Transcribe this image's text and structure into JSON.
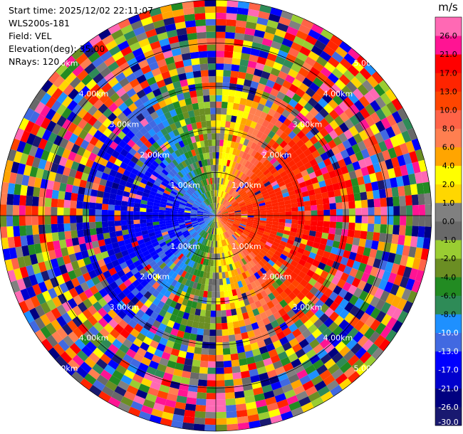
{
  "meta": {
    "start_time": "Start time: 2025/12/02 22:11:07",
    "instrument": "WLS200s-181",
    "field": "Field: VEL",
    "elevation": "Elevation(deg): 35.00",
    "nrays": "NRays: 120"
  },
  "chart_data": {
    "type": "ppi",
    "field": "VEL",
    "units": "m/s",
    "range_max_km": 5.0,
    "range_rings_km": [
      1.0,
      2.0,
      3.0,
      4.0,
      5.0
    ],
    "ring_labels": [
      "1.00km",
      "2.00km",
      "3.00km",
      "4.00km",
      "5.00km"
    ],
    "n_rays": 120,
    "colorbar": {
      "label": "m/s",
      "boundaries": [
        -30,
        -26,
        -21,
        -17,
        -13,
        -10,
        -8,
        -6,
        -4,
        -2,
        -1,
        0,
        1,
        2,
        4,
        6,
        8,
        10,
        13,
        17,
        21,
        26,
        30
      ],
      "tick_labels": [
        "-30.0",
        "-26.0",
        "-21.0",
        "-17.0",
        "-13.0",
        "-10.0",
        "-8.0",
        "-6.0",
        "-4.0",
        "-2.0",
        "-1.0",
        "0.0",
        "1.0",
        "2.0",
        "4.0",
        "6.0",
        "8.0",
        "10.0",
        "13.0",
        "17.0",
        "21.0",
        "26.0"
      ],
      "colors": [
        "#191970",
        "#000080",
        "#0000cd",
        "#0000ff",
        "#4169e1",
        "#1e90ff",
        "#2e8b57",
        "#228b22",
        "#6b8e23",
        "#9acd32",
        "#696969",
        "#808080",
        "#ffd700",
        "#ffff00",
        "#ffa500",
        "#ff7f50",
        "#ff6347",
        "#ff4500",
        "#ff2400",
        "#ff0000",
        "#ff1493",
        "#ff69b4"
      ]
    }
  }
}
